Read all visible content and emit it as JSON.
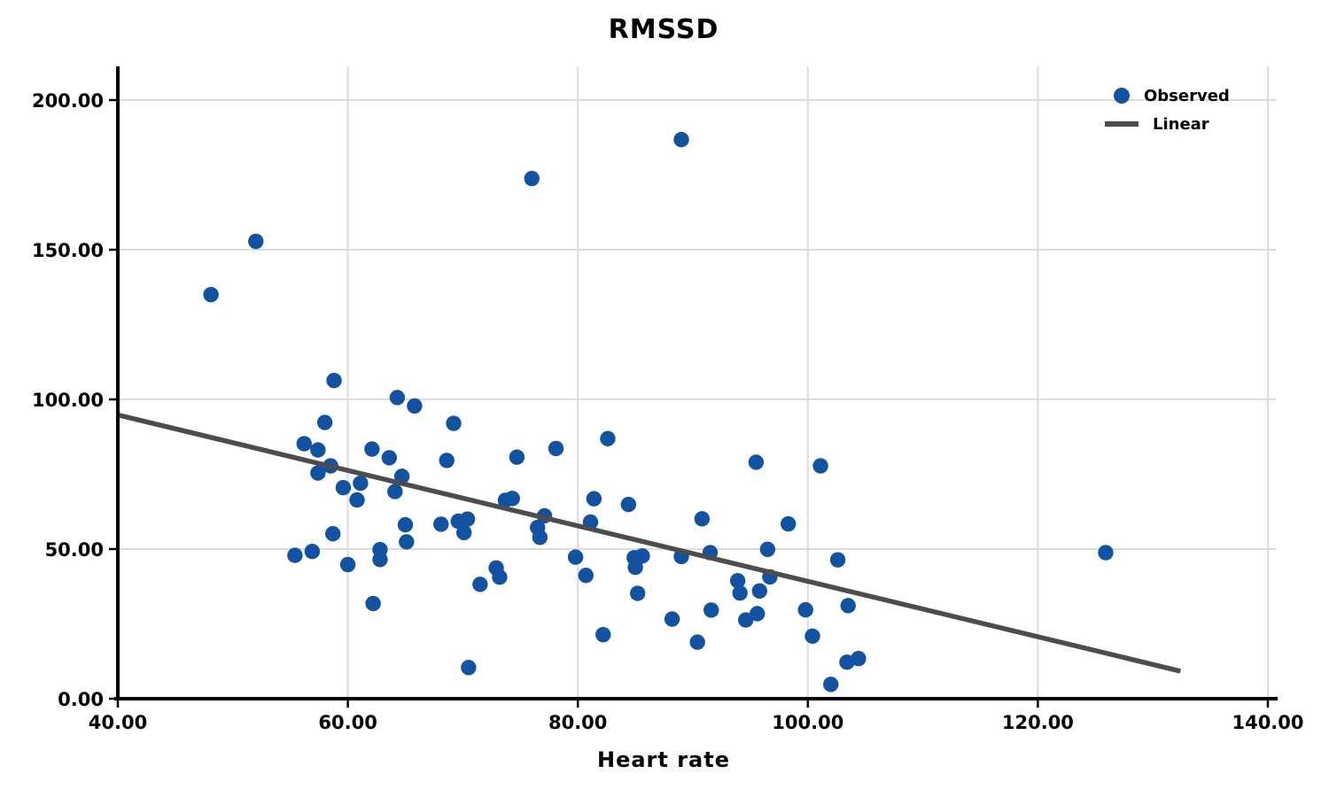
{
  "title": "RMSSD",
  "axes": {
    "xlabel": "Heart rate",
    "ylabel": "",
    "x_tick_labels": [
      "40.00",
      "60.00",
      "80.00",
      "100.00",
      "120.00",
      "140.00"
    ],
    "x_tick_values": [
      40,
      60,
      80,
      100,
      120,
      140
    ],
    "y_tick_labels": [
      "0.00",
      "50.00",
      "100.00",
      "150.00",
      "200.00"
    ],
    "y_tick_values": [
      0,
      50,
      100,
      150,
      200
    ],
    "xlim": [
      40,
      140.7
    ],
    "ylim": [
      0,
      211
    ]
  },
  "legend": [
    {
      "label": "Observed",
      "marker": "dot"
    },
    {
      "label": "Linear",
      "marker": "line"
    }
  ],
  "colors": {
    "marker": "#1252A0",
    "line": "#4D4D4D",
    "grid": "#DCDCDC",
    "axis": "#000000",
    "background": "#FFFFFF"
  },
  "chart_data": {
    "type": "scatter",
    "title": "RMSSD",
    "xlabel": "Heart rate",
    "ylabel": "",
    "xlim": [
      40,
      140.7
    ],
    "ylim": [
      0,
      211
    ],
    "grid": true,
    "legend_position": "top-right",
    "series": [
      {
        "name": "Observed",
        "type": "scatter",
        "color": "#1252A0",
        "points": [
          [
            48.1,
            135.0
          ],
          [
            52.0,
            152.8
          ],
          [
            76.0,
            173.8
          ],
          [
            89.0,
            186.8
          ],
          [
            58.8,
            106.3
          ],
          [
            64.3,
            100.6
          ],
          [
            65.8,
            97.8
          ],
          [
            58.0,
            92.3
          ],
          [
            69.2,
            92.0
          ],
          [
            82.6,
            86.9
          ],
          [
            56.2,
            85.2
          ],
          [
            57.4,
            83.1
          ],
          [
            62.1,
            83.4
          ],
          [
            78.1,
            83.6
          ],
          [
            63.6,
            80.5
          ],
          [
            68.6,
            79.6
          ],
          [
            74.7,
            80.7
          ],
          [
            95.5,
            79.0
          ],
          [
            101.1,
            77.8
          ],
          [
            58.5,
            77.8
          ],
          [
            57.4,
            75.4
          ],
          [
            64.7,
            74.3
          ],
          [
            61.1,
            72.0
          ],
          [
            59.6,
            70.5
          ],
          [
            64.1,
            69.2
          ],
          [
            73.7,
            66.3
          ],
          [
            74.3,
            66.9
          ],
          [
            81.4,
            66.8
          ],
          [
            60.8,
            66.4
          ],
          [
            84.4,
            64.9
          ],
          [
            77.1,
            61.1
          ],
          [
            90.8,
            60.1
          ],
          [
            70.4,
            60.0
          ],
          [
            69.6,
            59.3
          ],
          [
            81.1,
            59.0
          ],
          [
            98.3,
            58.4
          ],
          [
            68.1,
            58.3
          ],
          [
            65.0,
            58.1
          ],
          [
            76.5,
            57.2
          ],
          [
            70.1,
            55.5
          ],
          [
            58.7,
            55.1
          ],
          [
            76.7,
            53.9
          ],
          [
            65.1,
            52.4
          ],
          [
            62.8,
            49.8
          ],
          [
            56.9,
            49.2
          ],
          [
            96.5,
            49.9
          ],
          [
            125.9,
            48.8
          ],
          [
            91.5,
            48.8
          ],
          [
            89.0,
            47.5
          ],
          [
            55.4,
            47.9
          ],
          [
            85.6,
            47.7
          ],
          [
            84.9,
            47.1
          ],
          [
            79.8,
            47.3
          ],
          [
            62.8,
            46.5
          ],
          [
            102.6,
            46.4
          ],
          [
            60.0,
            44.8
          ],
          [
            85.0,
            43.9
          ],
          [
            72.9,
            43.7
          ],
          [
            80.7,
            41.2
          ],
          [
            73.2,
            40.6
          ],
          [
            96.7,
            40.7
          ],
          [
            93.9,
            39.4
          ],
          [
            71.5,
            38.2
          ],
          [
            95.8,
            36.0
          ],
          [
            94.1,
            35.3
          ],
          [
            85.2,
            35.2
          ],
          [
            62.2,
            31.8
          ],
          [
            103.5,
            31.1
          ],
          [
            99.8,
            29.7
          ],
          [
            91.6,
            29.6
          ],
          [
            95.6,
            28.4
          ],
          [
            88.2,
            26.6
          ],
          [
            94.6,
            26.3
          ],
          [
            82.2,
            21.4
          ],
          [
            100.4,
            20.9
          ],
          [
            90.4,
            18.9
          ],
          [
            103.4,
            12.2
          ],
          [
            104.4,
            13.4
          ],
          [
            102.0,
            4.8
          ],
          [
            70.5,
            10.4
          ]
        ]
      },
      {
        "name": "Linear",
        "type": "line",
        "color": "#4D4D4D",
        "points": [
          [
            40.0,
            94.8
          ],
          [
            132.4,
            9.2
          ]
        ]
      }
    ]
  }
}
